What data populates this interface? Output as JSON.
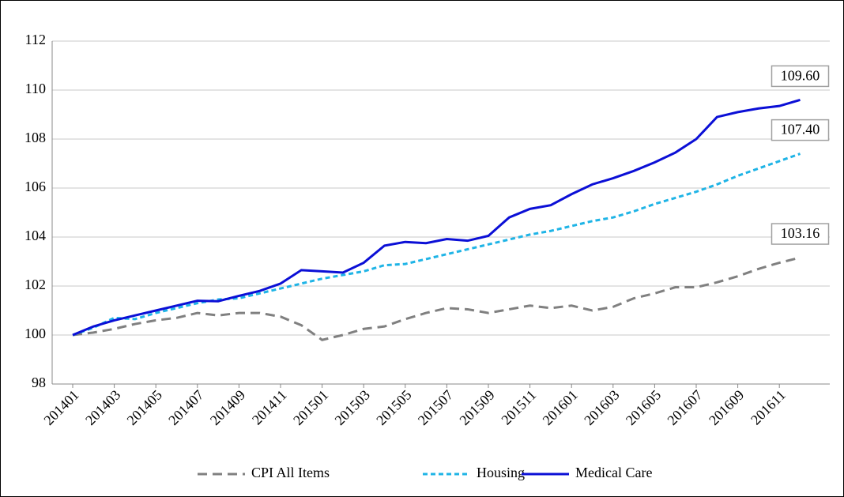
{
  "chart_data": {
    "type": "line",
    "categories": [
      "201401",
      null,
      "201403",
      null,
      "201405",
      null,
      "201407",
      null,
      "201409",
      null,
      "201411",
      null,
      "201501",
      null,
      "201503",
      null,
      "201505",
      null,
      "201507",
      null,
      "201509",
      null,
      "201511",
      null,
      "201601",
      null,
      "201603",
      null,
      "201605",
      null,
      "201607",
      null,
      "201609",
      null,
      "201611",
      null
    ],
    "ylim": [
      98,
      112
    ],
    "yticks": [
      98,
      100,
      102,
      104,
      106,
      108,
      110,
      112
    ],
    "grid": true,
    "legend": "bottom",
    "series": [
      {
        "name": "CPI All Items",
        "color": "#808080",
        "dash": "long",
        "values": [
          100,
          100.1,
          100.25,
          100.45,
          100.6,
          100.7,
          100.9,
          100.8,
          100.9,
          100.9,
          100.75,
          100.4,
          99.8,
          100.0,
          100.25,
          100.35,
          100.65,
          100.9,
          101.1,
          101.05,
          100.9,
          101.05,
          101.2,
          101.1,
          101.2,
          101.0,
          101.15,
          101.5,
          101.7,
          101.95,
          101.95,
          102.15,
          102.4,
          102.7,
          102.95,
          103.16
        ],
        "value_labels": [
          null,
          null,
          null,
          null,
          null,
          null,
          null,
          null,
          null,
          null,
          null,
          null,
          null,
          null,
          null,
          null,
          null,
          null,
          null,
          null,
          null,
          null,
          null,
          null,
          null,
          null,
          null,
          null,
          null,
          null,
          null,
          null,
          null,
          null,
          null,
          "103.16"
        ]
      },
      {
        "name": "Housing",
        "color": "#1fb4e6",
        "dash": "short",
        "values": [
          100,
          100.3,
          100.7,
          100.65,
          100.9,
          101.1,
          101.3,
          101.45,
          101.5,
          101.7,
          101.9,
          102.1,
          102.3,
          102.45,
          102.6,
          102.85,
          102.9,
          103.1,
          103.3,
          103.5,
          103.7,
          103.9,
          104.1,
          104.25,
          104.45,
          104.65,
          104.8,
          105.05,
          105.35,
          105.6,
          105.85,
          106.15,
          106.5,
          106.8,
          107.1,
          107.4
        ],
        "value_labels": [
          null,
          null,
          null,
          null,
          null,
          null,
          null,
          null,
          null,
          null,
          null,
          null,
          null,
          null,
          null,
          null,
          null,
          null,
          null,
          null,
          null,
          null,
          null,
          null,
          null,
          null,
          null,
          null,
          null,
          null,
          null,
          null,
          null,
          null,
          null,
          "107.40"
        ]
      },
      {
        "name": "Medical Care",
        "color": "#0b0fd6",
        "dash": "solid",
        "values": [
          100,
          100.35,
          100.6,
          100.8,
          101.0,
          101.2,
          101.4,
          101.38,
          101.6,
          101.8,
          102.1,
          102.65,
          102.6,
          102.55,
          102.95,
          103.65,
          103.8,
          103.75,
          103.92,
          103.85,
          104.05,
          104.8,
          105.15,
          105.3,
          105.75,
          106.15,
          106.4,
          106.7,
          107.05,
          107.45,
          108.0,
          108.9,
          109.1,
          109.25,
          109.35,
          109.6
        ],
        "value_labels": [
          null,
          null,
          null,
          null,
          null,
          null,
          null,
          null,
          null,
          null,
          null,
          null,
          null,
          null,
          null,
          null,
          null,
          null,
          null,
          null,
          null,
          null,
          null,
          null,
          null,
          null,
          null,
          null,
          null,
          null,
          null,
          null,
          null,
          null,
          null,
          "109.60"
        ]
      }
    ]
  }
}
